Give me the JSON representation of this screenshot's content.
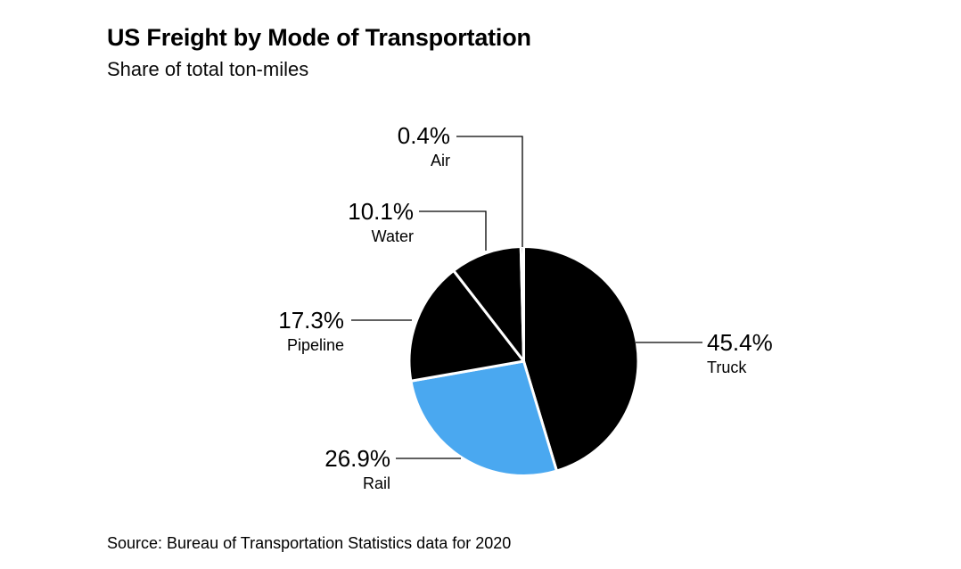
{
  "page": {
    "background_color": "#ffffff"
  },
  "chart_data": {
    "type": "pie",
    "title": "US Freight by Mode of Transportation",
    "subtitle": "Share of total ton-miles",
    "source_note": "Source: Bureau of Transportation Statistics data for 2020",
    "unit": "%",
    "direction": "clockwise",
    "start_angle_deg": 0,
    "legend_position": "none",
    "label_style": "callout-with-leader-lines",
    "separator_color": "#ffffff",
    "leader_line_color": "#000000",
    "text_color": "#000000",
    "slices": [
      {
        "label": "Truck",
        "value": 45.4,
        "display": "45.4%",
        "color": "#000000"
      },
      {
        "label": "Rail",
        "value": 26.9,
        "display": "26.9%",
        "color": "#4AA8F0"
      },
      {
        "label": "Pipeline",
        "value": 17.3,
        "display": "17.3%",
        "color": "#000000"
      },
      {
        "label": "Water",
        "value": 10.1,
        "display": "10.1%",
        "color": "#000000"
      },
      {
        "label": "Air",
        "value": 0.4,
        "display": "0.4%",
        "color": "#000000"
      }
    ]
  }
}
